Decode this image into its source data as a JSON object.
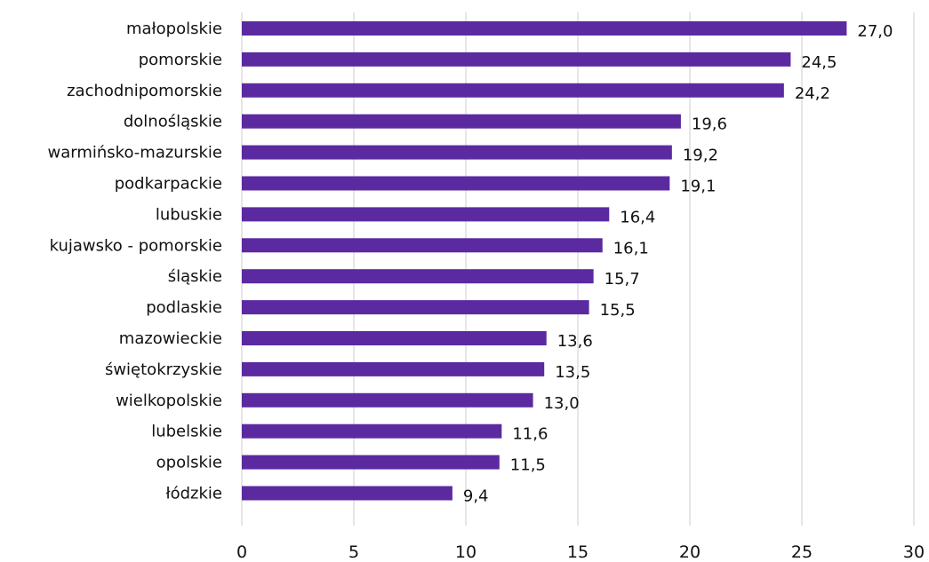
{
  "chart_data": {
    "type": "bar",
    "orientation": "horizontal",
    "categories": [
      "małopolskie",
      "pomorskie",
      "zachodnipomorskie",
      "dolnośląskie",
      "warmińsko-mazurskie",
      "podkarpackie",
      "lubuskie",
      "kujawsko - pomorskie",
      "śląskie",
      "podlaskie",
      "mazowieckie",
      "świętokrzyskie",
      "wielkopolskie",
      "lubelskie",
      "opolskie",
      "łódzkie"
    ],
    "values": [
      27.0,
      24.5,
      24.2,
      19.6,
      19.2,
      19.1,
      16.4,
      16.1,
      15.7,
      15.5,
      13.6,
      13.5,
      13.0,
      11.6,
      11.5,
      9.4
    ],
    "value_labels": [
      "27,0",
      "24,5",
      "24,2",
      "19,6",
      "19,2",
      "19,1",
      "16,4",
      "16,1",
      "15,7",
      "15,5",
      "13,6",
      "13,5",
      "13,0",
      "11,6",
      "11,5",
      "9,4"
    ],
    "xlim": [
      0,
      30
    ],
    "x_ticks": [
      0,
      5,
      10,
      15,
      20,
      25,
      30
    ],
    "x_tick_labels": [
      "0",
      "5",
      "10",
      "15",
      "20",
      "25",
      "30"
    ],
    "grid": true,
    "legend": false,
    "title": "",
    "xlabel": "",
    "ylabel": "",
    "bar_color": "#5b2aa0",
    "grid_color": "#d9d9d9"
  }
}
